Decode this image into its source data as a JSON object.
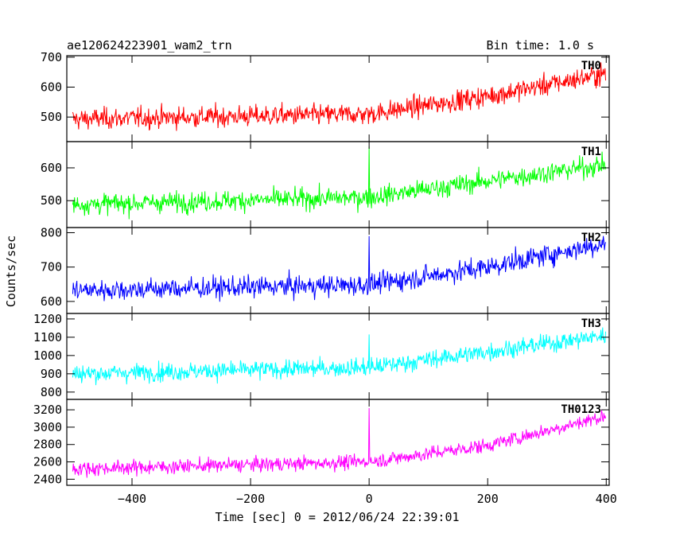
{
  "header": {
    "title": "ae120624223901_wam2_trn",
    "bin_time": "Bin time: 1.0 s"
  },
  "chart_data": {
    "type": "line",
    "xlabel": "Time [sec] 0 = 2012/06/24 22:39:01",
    "ylabel": "Counts/sec",
    "xlim": [
      -510,
      405
    ],
    "x_start": -500,
    "x_end": 399,
    "x_ticks": [
      -400,
      -200,
      0,
      200,
      400
    ],
    "x_tick_labels": [
      "−400",
      "−200",
      "0",
      "200",
      "400"
    ],
    "grid": false,
    "panels": [
      {
        "name": "TH0",
        "color": "#ff0000",
        "ylim": [
          418,
          705
        ],
        "y_ticks": [
          500,
          600,
          700
        ],
        "y_tick_labels": [
          "500",
          "600",
          "700"
        ],
        "trend": [
          [
            -500,
            493
          ],
          [
            0,
            510
          ],
          [
            200,
            570
          ],
          [
            400,
            645
          ]
        ],
        "noise_amplitude": 32,
        "spike": null
      },
      {
        "name": "TH1",
        "color": "#00ff00",
        "ylim": [
          418,
          680
        ],
        "y_ticks": [
          500,
          600
        ],
        "y_tick_labels": [
          "500",
          "600"
        ],
        "trend": [
          [
            -500,
            488
          ],
          [
            0,
            510
          ],
          [
            200,
            560
          ],
          [
            400,
            610
          ]
        ],
        "noise_amplitude": 28,
        "spike": {
          "x": 0,
          "value": 665
        }
      },
      {
        "name": "TH2",
        "color": "#0000ff",
        "ylim": [
          565,
          815
        ],
        "y_ticks": [
          600,
          700,
          800
        ],
        "y_tick_labels": [
          "600",
          "700",
          "800"
        ],
        "trend": [
          [
            -500,
            632
          ],
          [
            0,
            648
          ],
          [
            200,
            700
          ],
          [
            400,
            770
          ]
        ],
        "noise_amplitude": 28,
        "spike": {
          "x": 0,
          "value": 790
        }
      },
      {
        "name": "TH3",
        "color": "#00ffff",
        "ylim": [
          760,
          1230
        ],
        "y_ticks": [
          800,
          900,
          1000,
          1100,
          1200
        ],
        "y_tick_labels": [
          "800",
          "900",
          "1000",
          "1100",
          "1200"
        ],
        "trend": [
          [
            -500,
            900
          ],
          [
            0,
            935
          ],
          [
            200,
            1020
          ],
          [
            400,
            1110
          ]
        ],
        "noise_amplitude": 45,
        "spike": {
          "x": 0,
          "value": 1115
        }
      },
      {
        "name": "TH0123",
        "color": "#ff00ff",
        "ylim": [
          2330,
          3320
        ],
        "y_ticks": [
          2400,
          2600,
          2800,
          3000,
          3200
        ],
        "y_tick_labels": [
          "2400",
          "2600",
          "2800",
          "3000",
          "3200"
        ],
        "trend": [
          [
            -500,
            2520
          ],
          [
            0,
            2600
          ],
          [
            200,
            2790
          ],
          [
            400,
            3130
          ]
        ],
        "noise_amplitude": 75,
        "spike": {
          "x": 0,
          "value": 3220
        }
      }
    ]
  }
}
